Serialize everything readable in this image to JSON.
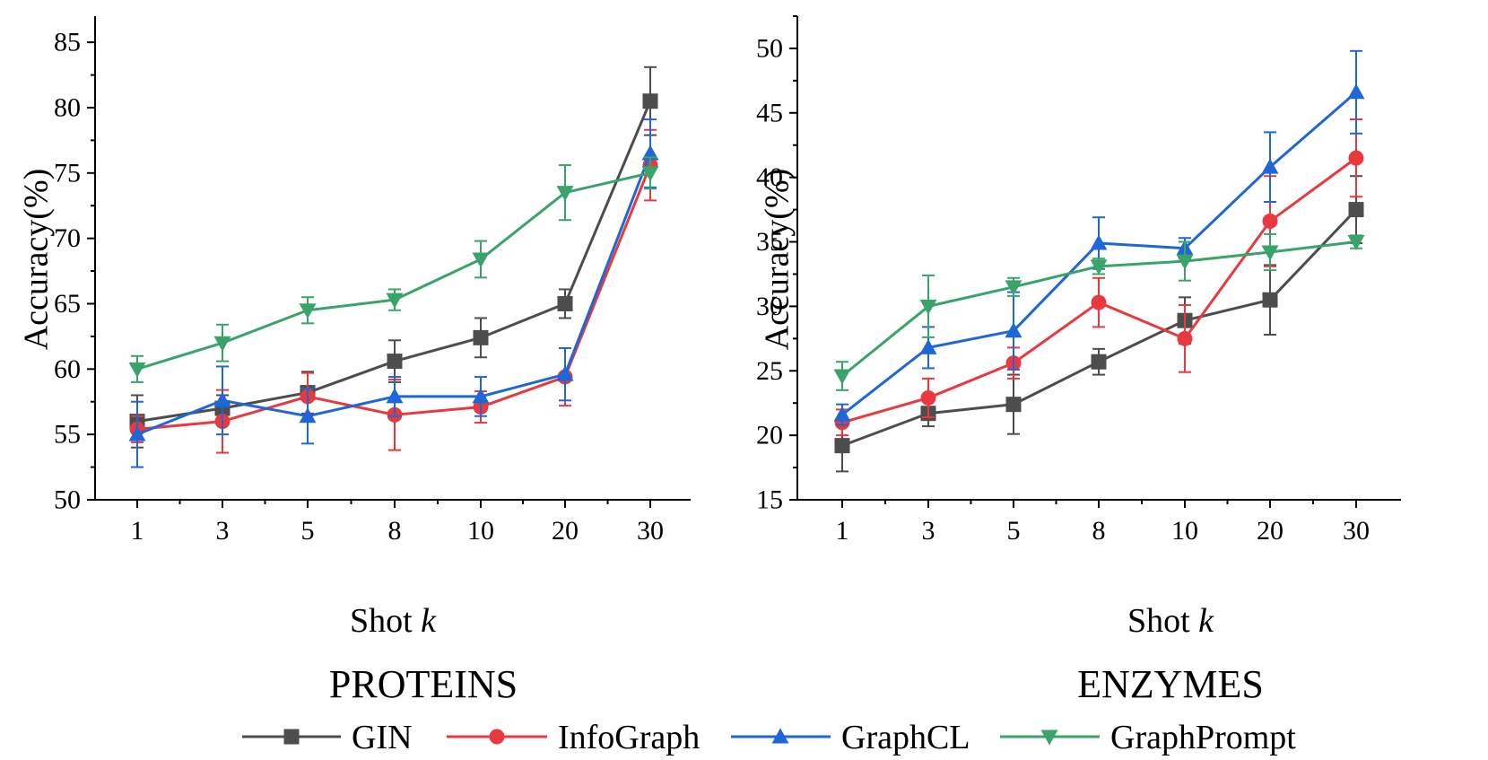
{
  "chart_data": [
    {
      "type": "line",
      "title": "PROTEINS",
      "xlabel": "Shot",
      "xlabel_var": "k",
      "ylabel": "Accuracy(%)",
      "categories": [
        "1",
        "3",
        "5",
        "8",
        "10",
        "20",
        "30"
      ],
      "ylim": [
        50,
        87
      ],
      "yticks": [
        50,
        55,
        60,
        65,
        70,
        75,
        80,
        85
      ],
      "series": [
        {
          "name": "GIN",
          "values": [
            56.0,
            57.0,
            58.2,
            60.6,
            62.4,
            65.0,
            80.5
          ],
          "errors": [
            2.0,
            1.0,
            1.6,
            1.6,
            1.5,
            1.1,
            2.6
          ]
        },
        {
          "name": "InfoGraph",
          "values": [
            55.4,
            56.0,
            57.9,
            56.5,
            57.1,
            59.4,
            75.6
          ],
          "errors": [
            1.0,
            2.4,
            1.8,
            2.7,
            1.2,
            2.2,
            2.7
          ]
        },
        {
          "name": "GraphCL",
          "values": [
            55.0,
            57.6,
            56.4,
            57.9,
            57.9,
            59.6,
            76.5
          ],
          "errors": [
            2.5,
            2.6,
            2.1,
            1.5,
            1.5,
            2.0,
            2.6
          ]
        },
        {
          "name": "GraphPrompt",
          "values": [
            60.0,
            62.0,
            64.5,
            65.3,
            68.4,
            73.5,
            75.0
          ],
          "errors": [
            1.0,
            1.4,
            1.0,
            0.8,
            1.4,
            2.1,
            1.2
          ]
        }
      ]
    },
    {
      "type": "line",
      "title": "ENZYMES",
      "xlabel": "Shot",
      "xlabel_var": "k",
      "ylabel": "Accuracy(%)",
      "categories": [
        "1",
        "3",
        "5",
        "8",
        "10",
        "20",
        "30"
      ],
      "ylim": [
        15,
        52.5
      ],
      "yticks": [
        15,
        20,
        25,
        30,
        35,
        40,
        45,
        50
      ],
      "series": [
        {
          "name": "GIN",
          "values": [
            19.2,
            21.7,
            22.4,
            25.7,
            28.9,
            30.5,
            37.5
          ],
          "errors": [
            2.0,
            1.0,
            2.3,
            1.0,
            1.8,
            2.7,
            2.6
          ]
        },
        {
          "name": "InfoGraph",
          "values": [
            21.0,
            22.9,
            25.6,
            30.3,
            27.5,
            36.6,
            41.5
          ],
          "errors": [
            1.0,
            1.5,
            1.2,
            1.9,
            2.6,
            3.5,
            3.0
          ]
        },
        {
          "name": "GraphCL",
          "values": [
            21.6,
            26.8,
            28.1,
            34.9,
            34.5,
            40.8,
            46.6
          ],
          "errors": [
            0.8,
            1.6,
            3.0,
            2.0,
            0.8,
            2.7,
            3.2
          ]
        },
        {
          "name": "GraphPrompt",
          "values": [
            24.6,
            30.0,
            31.5,
            33.1,
            33.5,
            34.2,
            35.0
          ],
          "errors": [
            1.1,
            2.4,
            0.7,
            0.6,
            1.5,
            1.4,
            0.5
          ]
        }
      ]
    }
  ],
  "legend": [
    {
      "name": "GIN",
      "color": "#4d4d4d",
      "marker": "square"
    },
    {
      "name": "InfoGraph",
      "color": "#e8393f",
      "marker": "circle"
    },
    {
      "name": "GraphCL",
      "color": "#1f66d6",
      "marker": "triangle-up"
    },
    {
      "name": "GraphPrompt",
      "color": "#3aa36a",
      "marker": "triangle-down"
    }
  ]
}
